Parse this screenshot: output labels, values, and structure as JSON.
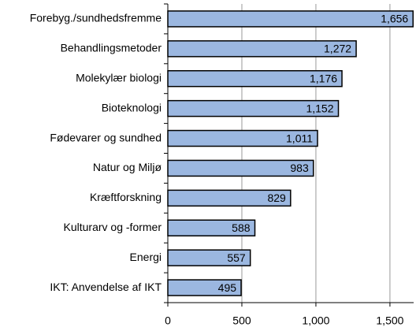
{
  "chart_data": {
    "type": "barh",
    "categories": [
      "Forebyg./sundhedsfremme",
      "Behandlingsmetoder",
      "Molekylær biologi",
      "Bioteknologi",
      "Fødevarer og sundhed",
      "Natur og Miljø",
      "Kræftforskning",
      "Kulturarv og -former",
      "Energi",
      "IKT: Anvendelse af IKT"
    ],
    "values": [
      1656,
      1272,
      1176,
      1152,
      1011,
      983,
      829,
      588,
      557,
      495
    ],
    "value_labels": [
      "1,656",
      "1,272",
      "1,176",
      "1,152",
      "1,011",
      "983",
      "829",
      "588",
      "557",
      "495"
    ],
    "color": "#9bb7e0",
    "xlim": [
      0,
      1660
    ],
    "xticks": [
      0,
      500,
      {
        "value": 1000,
        "label": "1,000"
      },
      {
        "value": 1500,
        "label": "1,500"
      }
    ],
    "grid": true
  }
}
